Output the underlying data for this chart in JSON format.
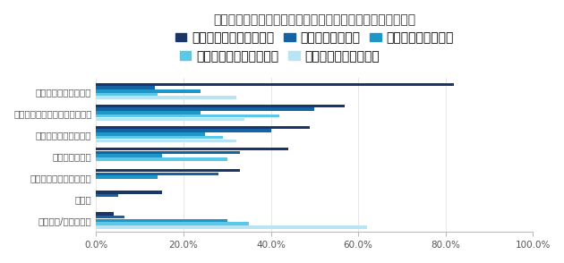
{
  "title": "リスキリングの取り組みの優遇制度について（成果実感別）",
  "categories": [
    "リスキリング後の昇給",
    "一時的なインセンティブの付与",
    "リスキリング後の昇格",
    "異動希望の受理",
    "リスキリング費用の負担",
    "その他",
    "特にない/わからない"
  ],
  "series_labels": [
    "大きな成果が実感できた",
    "成果を実感できた",
    "どちらともいえない",
    "あまり成果が出ていない",
    "全く成果が出ていない"
  ],
  "colors": [
    "#1a3568",
    "#1464a5",
    "#1e96c8",
    "#5ac8e8",
    "#b8e4f4"
  ],
  "data": [
    [
      82.0,
      13.5,
      24.0,
      14.0,
      32.0
    ],
    [
      57.0,
      50.0,
      24.0,
      42.0,
      34.0
    ],
    [
      49.0,
      40.0,
      25.0,
      29.0,
      32.0
    ],
    [
      44.0,
      33.0,
      15.0,
      30.0,
      0.0
    ],
    [
      33.0,
      28.0,
      14.0,
      0.0,
      0.0
    ],
    [
      15.0,
      5.0,
      0.0,
      0.0,
      0.0
    ],
    [
      4.0,
      6.5,
      30.0,
      35.0,
      62.0
    ]
  ],
  "xlim": [
    0,
    100
  ],
  "xticks": [
    0,
    20,
    40,
    60,
    80,
    100
  ],
  "xticklabels": [
    "0.0%",
    "20.0%",
    "40.0%",
    "60.0%",
    "80.0%",
    "100.0%"
  ],
  "bg_color": "#ffffff",
  "title_fontsize": 10,
  "tick_fontsize": 7.5,
  "legend_fontsize": 7
}
